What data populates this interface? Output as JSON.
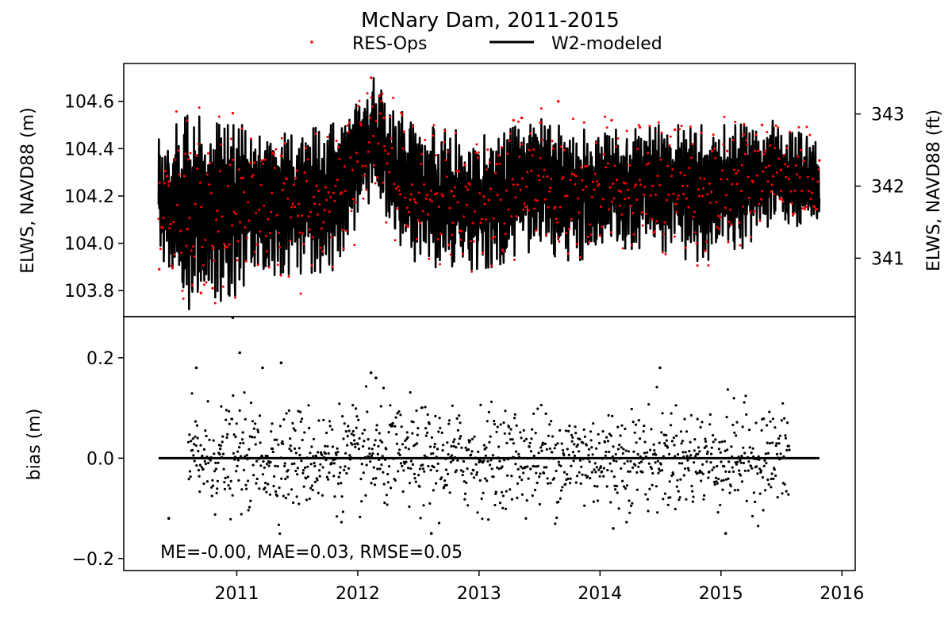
{
  "title": "McNary Dam, 2011-2015",
  "legend": {
    "placement": "top-center",
    "items": [
      {
        "label": "RES-Ops",
        "marker": "dot",
        "color": "#ff0000"
      },
      {
        "label": "W2-modeled",
        "marker": "line",
        "color": "#000000"
      }
    ]
  },
  "chart_data": [
    {
      "type": "line",
      "title": "McNary Dam, 2011-2015",
      "xlabel": "",
      "ylabel": "ELWS, NAVD88 (m)",
      "ylabel_right": "ELWS, NAVD88 (ft)",
      "xlim": [
        "2010-01-25",
        "2016-02-10"
      ],
      "ylim": [
        103.69,
        104.76
      ],
      "ylim_right_ft": [
        340.19,
        343.7
      ],
      "yticks": [
        103.8,
        104.0,
        104.2,
        104.4,
        104.6
      ],
      "yticks_right": [
        341,
        342,
        343
      ],
      "x_range": [
        "2010-05-10",
        "2015-10-25"
      ],
      "grid": false,
      "series": [
        {
          "name": "RES-Ops",
          "style": "scatter",
          "color": "#ff0000",
          "points_approx": [
            [
              "2010-05-12",
              103.89
            ],
            [
              "2010-06-10",
              104.26
            ],
            [
              "2010-08-05",
              104.06
            ],
            [
              "2010-09-15",
              103.79
            ],
            [
              "2010-10-20",
              103.81
            ],
            [
              "2010-12-20",
              104.55
            ],
            [
              "2011-05-15",
              104.37
            ],
            [
              "2012-02-10",
              104.7
            ],
            [
              "2012-03-20",
              104.53
            ],
            [
              "2012-10-10",
              104.22
            ],
            [
              "2013-04-15",
              104.52
            ],
            [
              "2013-05-10",
              104.53
            ],
            [
              "2013-07-05",
              104.51
            ],
            [
              "2013-08-28",
              104.6
            ],
            [
              "2014-02-05",
              104.52
            ],
            [
              "2014-05-01",
              104.49
            ],
            [
              "2014-08-15",
              104.48
            ],
            [
              "2015-01-20",
              104.39
            ],
            [
              "2015-03-10",
              104.46
            ],
            [
              "2015-05-05",
              104.5
            ],
            [
              "2015-07-01",
              104.31
            ],
            [
              "2015-10-25",
              104.35
            ]
          ]
        },
        {
          "name": "W2-modeled",
          "style": "line",
          "color": "#000000",
          "start": "2010-05-10",
          "end": "2015-10-25",
          "envelope_approx": [
            [
              "2010-05",
              103.92,
              104.45
            ],
            [
              "2010-08",
              103.71,
              104.55
            ],
            [
              "2010-11",
              103.71,
              104.5
            ],
            [
              "2011-02",
              103.86,
              104.5
            ],
            [
              "2011-06",
              103.87,
              104.47
            ],
            [
              "2011-10",
              103.88,
              104.5
            ],
            [
              "2012-02",
              104.2,
              104.71
            ],
            [
              "2012-06",
              103.9,
              104.5
            ],
            [
              "2012-10",
              103.88,
              104.48
            ],
            [
              "2013-02",
              103.9,
              104.45
            ],
            [
              "2013-06",
              103.97,
              104.53
            ],
            [
              "2013-10",
              103.92,
              104.5
            ],
            [
              "2014-02",
              103.98,
              104.48
            ],
            [
              "2014-06",
              103.97,
              104.5
            ],
            [
              "2014-10",
              103.92,
              104.5
            ],
            [
              "2015-02",
              103.95,
              104.5
            ],
            [
              "2015-06",
              104.1,
              104.52
            ],
            [
              "2015-10",
              104.05,
              104.43
            ]
          ]
        }
      ]
    },
    {
      "type": "scatter",
      "xlabel": "",
      "ylabel": "bias (m)",
      "xlim": [
        "2010-01-25",
        "2016-02-10"
      ],
      "ylim": [
        -0.224,
        0.282
      ],
      "yticks": [
        -0.2,
        0.0,
        0.2
      ],
      "xticks": [
        "2011",
        "2012",
        "2013",
        "2014",
        "2015",
        "2016"
      ],
      "grid": false,
      "series": [
        {
          "name": "bias",
          "color": "#000000",
          "start": "2010-05-10",
          "end": "2015-10-25",
          "spread_approx": 0.05,
          "outliers": [
            [
              "2010-12-20",
              0.28
            ],
            [
              "2011-01-10",
              0.21
            ],
            [
              "2011-05-15",
              0.19
            ],
            [
              "2012-02-10",
              0.17
            ],
            [
              "2012-02-25",
              0.16
            ],
            [
              "2011-03-20",
              0.18
            ],
            [
              "2014-07-01",
              0.18
            ],
            [
              "2010-09-01",
              0.18
            ],
            [
              "2010-06-10",
              -0.12
            ],
            [
              "2012-08-10",
              -0.15
            ],
            [
              "2014-02-10",
              -0.14
            ],
            [
              "2015-01-15",
              -0.15
            ]
          ]
        },
        {
          "name": "zero line",
          "style": "line",
          "color": "#000000",
          "x": [
            "2010-05-10",
            "2015-10-25"
          ],
          "y": [
            0.0,
            0.0
          ]
        }
      ],
      "annotation": "ME=-0.00, MAE=0.03, RMSE=0.05"
    }
  ]
}
